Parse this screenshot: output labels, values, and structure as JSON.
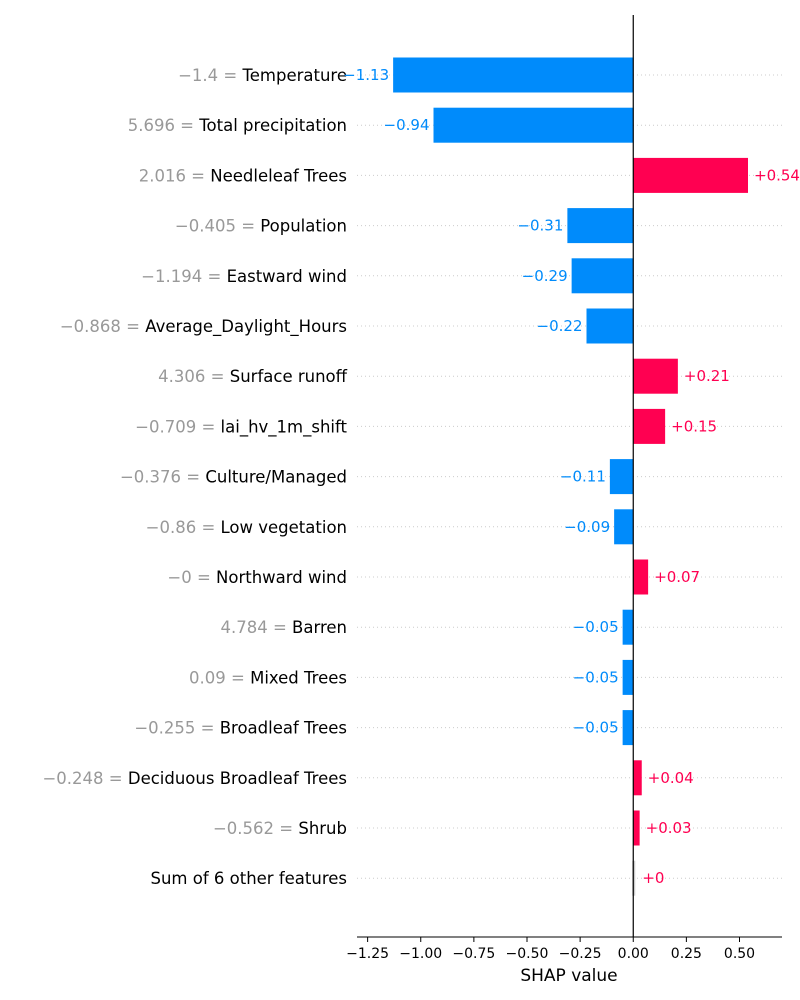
{
  "chart_data": {
    "type": "bar",
    "orientation": "horizontal",
    "xlabel": "SHAP value",
    "xlim": [
      -1.3,
      0.7
    ],
    "xticks": [
      -1.25,
      -1.0,
      -0.75,
      -0.5,
      -0.25,
      0.0,
      0.25,
      0.5
    ],
    "xtick_labels": [
      "−1.25",
      "−1.00",
      "−0.75",
      "−0.50",
      "−0.25",
      "0.00",
      "0.25",
      "0.50"
    ],
    "features": [
      {
        "value_label": "−1.4 =",
        "name": "Temperature",
        "shap": -1.13,
        "label": "−1.13"
      },
      {
        "value_label": "5.696 =",
        "name": "Total precipitation",
        "shap": -0.94,
        "label": "−0.94"
      },
      {
        "value_label": "2.016 =",
        "name": "Needleleaf Trees",
        "shap": 0.54,
        "label": "+0.54"
      },
      {
        "value_label": "−0.405 =",
        "name": "Population",
        "shap": -0.31,
        "label": "−0.31"
      },
      {
        "value_label": "−1.194 =",
        "name": "Eastward wind",
        "shap": -0.29,
        "label": "−0.29"
      },
      {
        "value_label": "−0.868 =",
        "name": "Average_Daylight_Hours",
        "shap": -0.22,
        "label": "−0.22"
      },
      {
        "value_label": "4.306 =",
        "name": "Surface runoff",
        "shap": 0.21,
        "label": "+0.21"
      },
      {
        "value_label": "−0.709 =",
        "name": "lai_hv_1m_shift",
        "shap": 0.15,
        "label": "+0.15"
      },
      {
        "value_label": "−0.376 =",
        "name": "Culture/Managed",
        "shap": -0.11,
        "label": "−0.11"
      },
      {
        "value_label": "−0.86 =",
        "name": "Low vegetation",
        "shap": -0.09,
        "label": "−0.09"
      },
      {
        "value_label": "−0 =",
        "name": "Northward wind",
        "shap": 0.07,
        "label": "+0.07"
      },
      {
        "value_label": "4.784 =",
        "name": "Barren",
        "shap": -0.05,
        "label": "−0.05"
      },
      {
        "value_label": "0.09 =",
        "name": "Mixed Trees",
        "shap": -0.05,
        "label": "−0.05"
      },
      {
        "value_label": "−0.255 =",
        "name": "Broadleaf Trees",
        "shap": -0.05,
        "label": "−0.05"
      },
      {
        "value_label": "−0.248 =",
        "name": "Deciduous Broadleaf Trees",
        "shap": 0.04,
        "label": "+0.04"
      },
      {
        "value_label": "−0.562 =",
        "name": "Shrub",
        "shap": 0.03,
        "label": "+0.03"
      },
      {
        "value_label": "",
        "name": "Sum of 6 other features",
        "shap": 0.0,
        "label": "+0",
        "is_other": true
      }
    ],
    "colors": {
      "positive": "#ff0051",
      "negative": "#008bfb",
      "neutral": "#cccccc",
      "axis": "#000000",
      "gridline": "#cccccc"
    },
    "grid": "dotted horizontal row lines",
    "legend": "none"
  }
}
